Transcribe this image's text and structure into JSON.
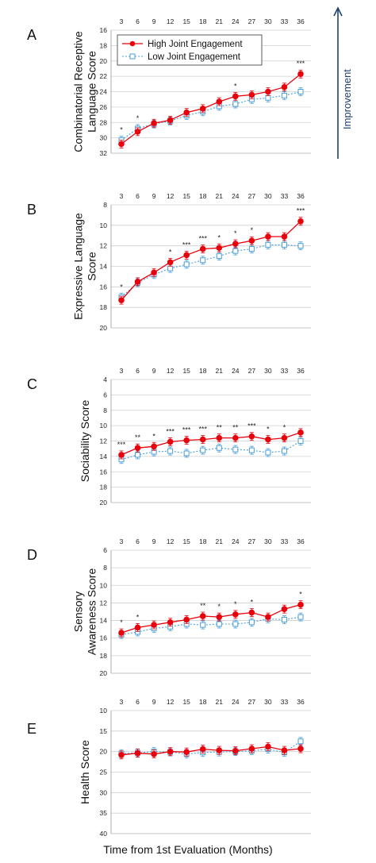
{
  "chart_data": {
    "type": "line",
    "xlabel": "Time from 1st Evaluation (Months)",
    "improvement_label": "Improvement",
    "x": [
      3,
      6,
      9,
      12,
      15,
      18,
      21,
      24,
      27,
      30,
      33,
      36
    ],
    "legend": [
      "High Joint Engagement",
      "Low Joint Engagement"
    ],
    "legend_placement": "top-left",
    "colors": {
      "high": "#e8000b",
      "low": "#4a9fd8",
      "grid": "#cfcfcf",
      "improvement_arrow": "#1f3f6e"
    },
    "y_inverted": true,
    "grid": true,
    "panels": [
      {
        "letter": "A",
        "ylabel": [
          "Combinatorial Receptive",
          "Language Score"
        ],
        "ylim": [
          16,
          32
        ],
        "yticks": [
          16,
          18,
          20,
          22,
          24,
          26,
          28,
          30,
          32
        ],
        "series": [
          {
            "name": "High Joint Engagement",
            "values": [
              30.8,
              29.2,
              28.1,
              27.7,
              26.7,
              26.2,
              25.3,
              24.6,
              24.4,
              24.0,
              23.4,
              21.7
            ]
          },
          {
            "name": "Low Joint Engagement",
            "values": [
              30.3,
              28.8,
              28.2,
              27.8,
              27.1,
              26.6,
              25.9,
              25.6,
              25.0,
              24.8,
              24.5,
              24.0
            ]
          }
        ],
        "stars": [
          "*",
          "*",
          "",
          "",
          "",
          "",
          "",
          "*",
          "",
          "",
          "",
          "***"
        ]
      },
      {
        "letter": "B",
        "ylabel": [
          "Expressive Language",
          "Score"
        ],
        "ylim": [
          8,
          20
        ],
        "yticks": [
          8,
          10,
          12,
          14,
          16,
          18,
          20
        ],
        "series": [
          {
            "name": "High Joint Engagement",
            "values": [
              17.3,
              15.5,
              14.6,
              13.6,
              12.9,
              12.3,
              12.2,
              11.8,
              11.5,
              11.1,
              11.1,
              9.6
            ]
          },
          {
            "name": "Low Joint Engagement",
            "values": [
              17.0,
              15.6,
              14.8,
              14.2,
              13.8,
              13.4,
              13.0,
              12.5,
              12.3,
              11.9,
              11.9,
              12.0
            ]
          }
        ],
        "stars": [
          "*",
          "",
          "",
          "*",
          "***",
          "***",
          "*",
          "*",
          "*",
          "",
          "",
          "***"
        ]
      },
      {
        "letter": "C",
        "ylabel": [
          "Sociability Score"
        ],
        "ylim": [
          4,
          20
        ],
        "yticks": [
          4,
          6,
          8,
          10,
          12,
          14,
          16,
          18,
          20
        ],
        "series": [
          {
            "name": "High Joint Engagement",
            "values": [
              13.8,
              12.9,
              12.7,
              12.1,
              11.9,
              11.8,
              11.6,
              11.6,
              11.4,
              11.8,
              11.6,
              10.9
            ]
          },
          {
            "name": "Low Joint Engagement",
            "values": [
              14.4,
              13.8,
              13.4,
              13.3,
              13.6,
              13.2,
              12.9,
              13.1,
              13.2,
              13.5,
              13.3,
              12.0
            ]
          }
        ],
        "stars": [
          "***",
          "**",
          "*",
          "***",
          "***",
          "***",
          "**",
          "**",
          "***",
          "*",
          "*",
          ""
        ]
      },
      {
        "letter": "D",
        "ylabel": [
          "Sensory",
          "Awareness Score"
        ],
        "ylim": [
          6,
          20
        ],
        "yticks": [
          6,
          8,
          10,
          12,
          14,
          16,
          18,
          20
        ],
        "series": [
          {
            "name": "High Joint Engagement",
            "values": [
              15.4,
              14.8,
              14.5,
              14.2,
              13.9,
              13.5,
              13.6,
              13.3,
              13.1,
              13.6,
              12.7,
              12.2
            ]
          },
          {
            "name": "Low Joint Engagement",
            "values": [
              15.6,
              15.3,
              14.9,
              14.7,
              14.4,
              14.5,
              14.4,
              14.4,
              14.2,
              13.8,
              13.9,
              13.6
            ]
          }
        ],
        "stars": [
          "*",
          "*",
          "",
          "",
          "",
          "**",
          "*",
          "*",
          "*",
          "",
          "",
          "*"
        ]
      },
      {
        "letter": "E",
        "ylabel": [
          "Health Score"
        ],
        "ylim": [
          10,
          40
        ],
        "yticks": [
          10,
          15,
          20,
          25,
          30,
          35,
          40
        ],
        "series": [
          {
            "name": "High Joint Engagement",
            "values": [
              20.8,
              20.4,
              20.6,
              20.0,
              20.1,
              19.4,
              19.7,
              19.8,
              19.3,
              18.8,
              19.7,
              19.3
            ]
          },
          {
            "name": "Low Joint Engagement",
            "values": [
              20.5,
              20.3,
              20.0,
              20.1,
              20.6,
              20.2,
              20.1,
              20.0,
              19.8,
              19.4,
              20.2,
              17.5
            ]
          }
        ],
        "stars": [
          "",
          "",
          "",
          "",
          "",
          "",
          "",
          "",
          "",
          "",
          "",
          ""
        ]
      }
    ]
  }
}
